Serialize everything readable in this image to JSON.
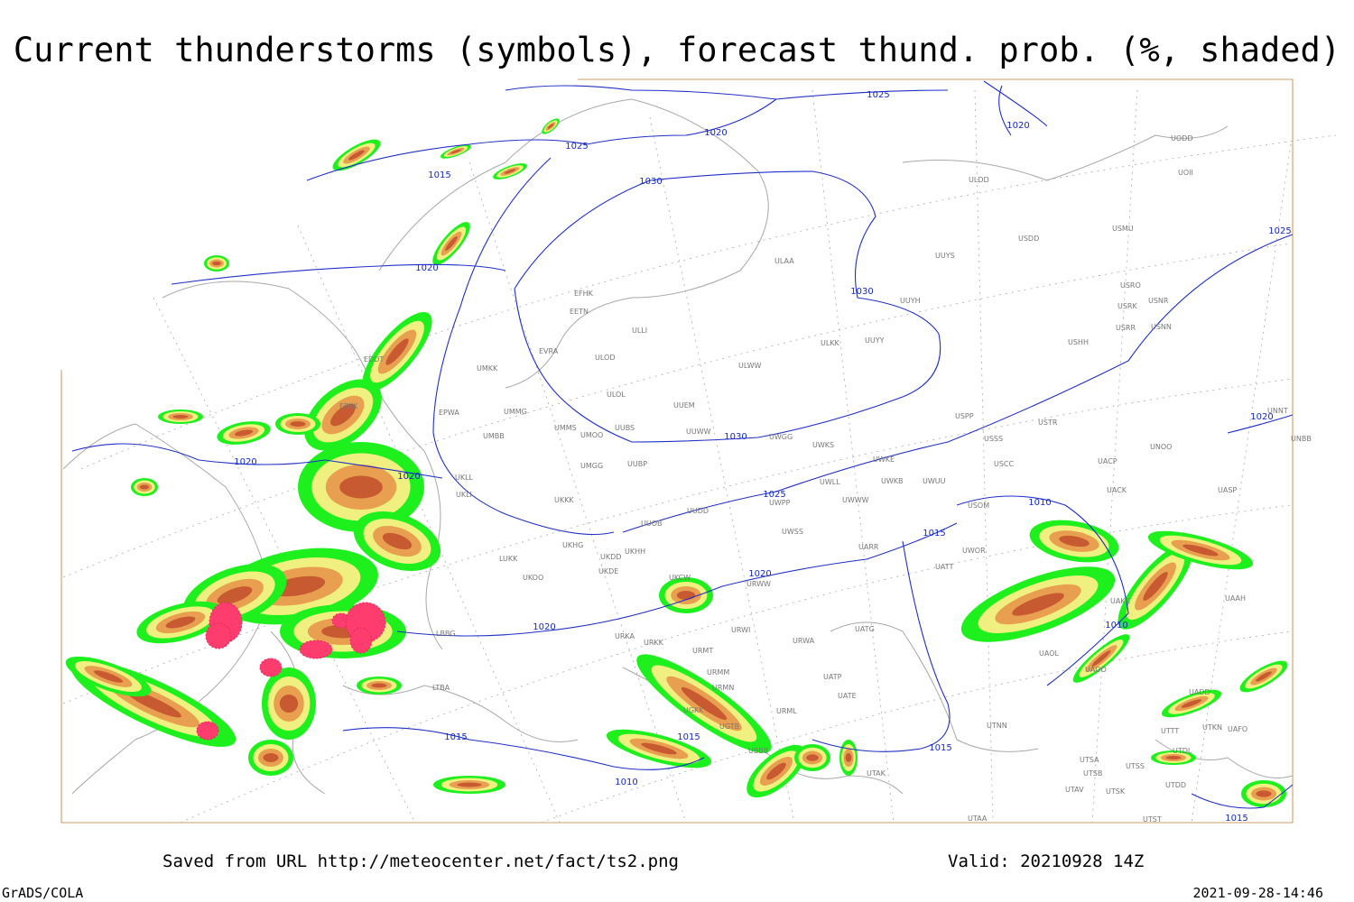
{
  "title": "Current thunderstorms (symbols), forecast thund. prob. (%, shaded)",
  "footer": {
    "source": "Saved from URL http://meteocenter.net/fact/ts2.png",
    "valid": "Valid: 20210928 14Z",
    "credit": "GrADS/COLA",
    "timestamp": "2021-09-28-14:46"
  },
  "isobar_labels": [
    1025,
    1020,
    1025,
    1015,
    1030,
    1020,
    1025,
    1020,
    1030,
    1030,
    1020,
    1020,
    1020,
    1025,
    1010,
    1015,
    1020,
    1020,
    1010,
    1015,
    1015,
    1010,
    1015,
    1015
  ],
  "stations": [
    "ULDD",
    "UOII",
    "UODD",
    "USDD",
    "USMU",
    "ULAA",
    "UUYS",
    "USRO",
    "USRK",
    "USNR",
    "USRR",
    "USNN",
    "UUYH",
    "EFHK",
    "EETN",
    "ULLI",
    "EVRA",
    "ULOD",
    "ULKK",
    "UUYY",
    "USHH",
    "ULWW",
    "EDDT",
    "UMKK",
    "ULOL",
    "UUEM",
    "EPKK",
    "EPWA",
    "UMMG",
    "UMMS",
    "UMOO",
    "UUBS",
    "UUWW",
    "UWGG",
    "UWKS",
    "USPP",
    "USTR",
    "USSS",
    "UNOO",
    "UMBB",
    "UUBP",
    "UMGG",
    "UWKE",
    "USCC",
    "UACP",
    "UKLL",
    "UKLI",
    "UWKB",
    "UWUU",
    "UACK",
    "UASP",
    "UWLL",
    "UKKK",
    "UUDD",
    "UWPP",
    "UWWW",
    "USOM",
    "UUOB",
    "UWSS",
    "UATT",
    "UWOR",
    "UARR",
    "LUKK",
    "UKHH",
    "UKDD",
    "UKDE",
    "UKHG",
    "UKOO",
    "UKCW",
    "URWW",
    "UATG",
    "URKK",
    "URWI",
    "URKA",
    "LBBG",
    "URMT",
    "URWA",
    "URMM",
    "URMN",
    "UATE",
    "UATP",
    "URML",
    "UGKK",
    "UGTB",
    "UBBB",
    "UTNN",
    "UTAK",
    "UAOL",
    "UAOO",
    "UAKK",
    "UAAH",
    "UADD",
    "UTTT",
    "UTKN",
    "UAFO",
    "UTDL",
    "UTSA",
    "UTSS",
    "UTSB",
    "UTAV",
    "UTSK",
    "UTDD",
    "UTST",
    "UTAA",
    "UNBB",
    "UNNT",
    "LTBA"
  ]
}
